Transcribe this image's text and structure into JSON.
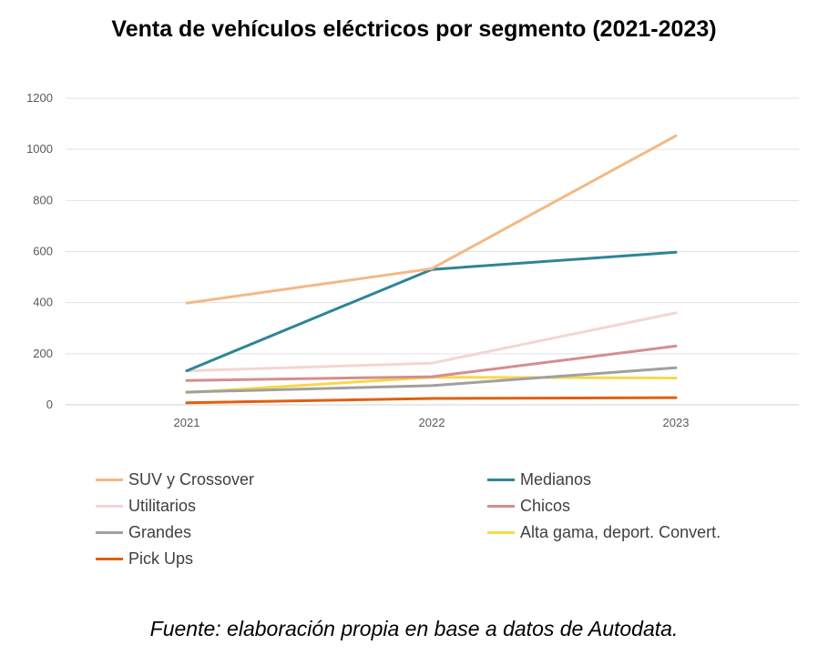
{
  "chart_data": {
    "type": "line",
    "title": "Venta de vehículos eléctricos por segmento (2021-2023)",
    "xlabel": "",
    "ylabel": "",
    "categories": [
      "2021",
      "2022",
      "2023"
    ],
    "ylim": [
      0,
      1200
    ],
    "yticks": [
      "0",
      "200",
      "400",
      "600",
      "800",
      "1000",
      "1200"
    ],
    "grid": true,
    "legend_position": "bottom",
    "series": [
      {
        "name": "SUV y Crossover",
        "color": "#F4B884",
        "values": [
          398,
          533,
          1053
        ]
      },
      {
        "name": "Medianos",
        "color": "#2E8596",
        "values": [
          133,
          530,
          597
        ]
      },
      {
        "name": "Utilitarios",
        "color": "#F2D6D3",
        "values": [
          133,
          163,
          360
        ]
      },
      {
        "name": "Chicos",
        "color": "#D48E8E",
        "values": [
          95,
          110,
          230
        ]
      },
      {
        "name": "Grandes",
        "color": "#A0A0A0",
        "values": [
          50,
          75,
          145
        ]
      },
      {
        "name": "Alta gama, deport. Convert.",
        "color": "#F8D849",
        "values": [
          48,
          108,
          105
        ]
      },
      {
        "name": "Pick Ups",
        "color": "#E0600F",
        "values": [
          8,
          25,
          28
        ]
      }
    ]
  },
  "source_note": "Fuente: elaboración propia en base a datos de Autodata."
}
